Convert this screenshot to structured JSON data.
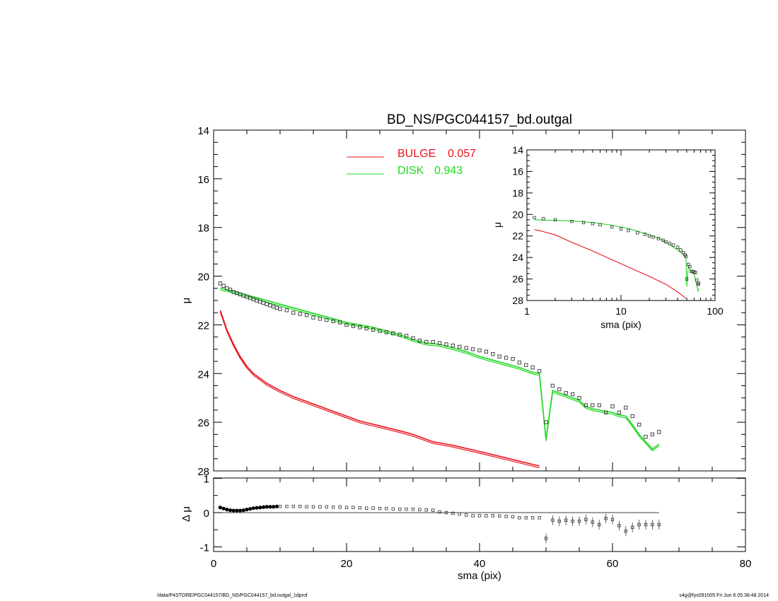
{
  "footer": {
    "left": "/data/P4STORE/PGC044157/BD_NS/PGC044157_bd.outgal_1dprof",
    "right": "s4g@fys091005  Fri Jun  6 05:38:48 2014"
  },
  "chart_data": [
    {
      "panel": "main",
      "type": "line",
      "title": "BD_NS/PGC044157_bd.outgal",
      "xlabel": "",
      "ylabel": "μ",
      "xlim": [
        0,
        80
      ],
      "ylim": [
        28,
        14
      ],
      "y_inverted": true,
      "yticks": [
        14,
        16,
        18,
        20,
        22,
        24,
        26,
        28
      ],
      "legend": [
        {
          "name": "BULGE",
          "value": "0.057",
          "color": "#e8141c"
        },
        {
          "name": "DISK",
          "value": "0.943",
          "color": "#1ed81e"
        }
      ],
      "series": [
        {
          "name": "BULGE",
          "color": "#e8141c",
          "x": [
            1,
            1.5,
            2,
            3,
            4,
            5,
            6,
            7,
            8,
            10,
            12,
            15,
            18,
            20,
            22,
            25,
            28,
            30,
            33,
            36,
            40,
            43,
            46,
            49
          ],
          "y": [
            21.4,
            21.8,
            22.2,
            22.8,
            23.3,
            23.7,
            24.0,
            24.2,
            24.4,
            24.7,
            24.95,
            25.25,
            25.55,
            25.75,
            25.95,
            26.15,
            26.35,
            26.5,
            26.8,
            26.95,
            27.2,
            27.4,
            27.6,
            27.8
          ]
        },
        {
          "name": "DISK",
          "color": "#1ed81e",
          "x": [
            1,
            2,
            4,
            6,
            8,
            10,
            12,
            14,
            16,
            18,
            20,
            22,
            24,
            26,
            28,
            30,
            32,
            34,
            36,
            38,
            40,
            42,
            44,
            46,
            48,
            49,
            50,
            51,
            52,
            53,
            54,
            55,
            56,
            57,
            58,
            59,
            60,
            61,
            62,
            63,
            64,
            65,
            66,
            67
          ],
          "y": [
            20.5,
            20.55,
            20.7,
            20.85,
            21.0,
            21.15,
            21.3,
            21.45,
            21.6,
            21.75,
            21.9,
            22.0,
            22.1,
            22.25,
            22.4,
            22.6,
            22.75,
            22.8,
            22.95,
            23.1,
            23.3,
            23.45,
            23.6,
            23.75,
            23.95,
            24.0,
            26.7,
            24.7,
            24.8,
            24.9,
            25.0,
            25.1,
            25.35,
            25.45,
            25.5,
            25.55,
            25.6,
            25.7,
            25.75,
            26.1,
            26.5,
            26.8,
            27.1,
            26.9
          ]
        }
      ],
      "observed_points": {
        "x": [
          1,
          1.5,
          2,
          2.5,
          3,
          3.5,
          4,
          4.5,
          5,
          5.5,
          6,
          6.5,
          7,
          7.5,
          8,
          8.5,
          9,
          9.5,
          10,
          11,
          12,
          13,
          14,
          15,
          16,
          17,
          18,
          19,
          20,
          21,
          22,
          23,
          24,
          25,
          26,
          27,
          28,
          29,
          30,
          31,
          32,
          33,
          34,
          35,
          36,
          37,
          38,
          39,
          40,
          41,
          42,
          43,
          44,
          45,
          46,
          47,
          48,
          49,
          50,
          51,
          52,
          53,
          54,
          55,
          56,
          57,
          58,
          59,
          60,
          61,
          62,
          63,
          64,
          65,
          66,
          67
        ],
        "y": [
          20.3,
          20.4,
          20.5,
          20.55,
          20.65,
          20.7,
          20.75,
          20.8,
          20.85,
          20.9,
          20.95,
          21.0,
          21.05,
          21.1,
          21.15,
          21.2,
          21.25,
          21.3,
          21.35,
          21.4,
          21.5,
          21.55,
          21.6,
          21.7,
          21.75,
          21.8,
          21.85,
          21.9,
          22.0,
          22.05,
          22.1,
          22.15,
          22.2,
          22.25,
          22.3,
          22.35,
          22.4,
          22.45,
          22.55,
          22.65,
          22.7,
          22.7,
          22.75,
          22.8,
          22.85,
          22.9,
          22.95,
          23.0,
          23.05,
          23.1,
          23.2,
          23.3,
          23.35,
          23.4,
          23.55,
          23.65,
          23.75,
          23.9,
          26.0,
          24.5,
          24.65,
          24.8,
          24.85,
          25.0,
          25.3,
          25.3,
          25.3,
          25.6,
          25.35,
          25.6,
          25.4,
          25.75,
          26.1,
          26.6,
          26.5,
          26.4
        ]
      }
    },
    {
      "panel": "inset",
      "type": "line",
      "xlabel": "sma (pix)",
      "ylabel": "μ",
      "xscale": "log",
      "xlim": [
        1,
        100
      ],
      "xticks": [
        1,
        10,
        100
      ],
      "ylim": [
        28,
        14
      ],
      "y_inverted": true,
      "yticks": [
        14,
        16,
        18,
        20,
        22,
        24,
        26,
        28
      ],
      "series": [
        {
          "name": "BULGE",
          "color": "#e8141c",
          "x": [
            1.2,
            1.5,
            2,
            3,
            5,
            8,
            12,
            20,
            30,
            40,
            49
          ],
          "y": [
            21.4,
            21.6,
            21.9,
            22.6,
            23.4,
            24.2,
            24.9,
            25.75,
            26.5,
            27.2,
            27.8
          ]
        },
        {
          "name": "DISK",
          "color": "#1ed81e",
          "x": [
            1.2,
            2,
            3,
            5,
            8,
            12,
            20,
            26,
            30,
            40,
            46,
            49,
            50,
            52,
            56,
            60,
            66,
            67
          ],
          "y": [
            20.5,
            20.55,
            20.6,
            20.75,
            21.0,
            21.3,
            21.9,
            22.25,
            22.6,
            23.3,
            23.75,
            24.0,
            26.7,
            24.8,
            25.35,
            25.6,
            27.1,
            26.9
          ]
        }
      ],
      "observed_points": {
        "x": [
          1.2,
          1.5,
          2,
          3,
          4,
          5,
          6,
          8,
          10,
          12,
          15,
          18,
          20,
          22,
          25,
          28,
          30,
          33,
          36,
          40,
          43,
          46,
          48,
          49,
          50,
          52,
          54,
          56,
          58,
          60,
          62,
          64,
          66,
          67
        ],
        "y": [
          20.3,
          20.4,
          20.5,
          20.65,
          20.75,
          20.85,
          20.95,
          21.15,
          21.35,
          21.5,
          21.7,
          21.85,
          22.0,
          22.1,
          22.25,
          22.4,
          22.55,
          22.7,
          22.85,
          23.05,
          23.3,
          23.55,
          23.75,
          23.9,
          26.0,
          24.65,
          24.85,
          25.3,
          25.3,
          25.35,
          25.4,
          26.1,
          26.5,
          26.4
        ]
      }
    },
    {
      "panel": "residual",
      "type": "scatter",
      "xlabel": "sma (pix)",
      "ylabel": "Δ μ",
      "xlim": [
        0,
        80
      ],
      "xticks": [
        0,
        20,
        40,
        60,
        80
      ],
      "ylim": [
        -1,
        1
      ],
      "yticks": [
        -1,
        0,
        1
      ],
      "zero_line_xmax": 67,
      "x": [
        1,
        1.5,
        2,
        2.5,
        3,
        3.5,
        4,
        4.5,
        5,
        5.5,
        6,
        6.5,
        7,
        7.5,
        8,
        8.5,
        9,
        9.5,
        10,
        11,
        12,
        13,
        14,
        15,
        16,
        17,
        18,
        19,
        20,
        21,
        22,
        23,
        24,
        25,
        26,
        27,
        28,
        29,
        30,
        31,
        32,
        33,
        34,
        35,
        36,
        37,
        38,
        39,
        40,
        41,
        42,
        43,
        44,
        45,
        46,
        47,
        48,
        49,
        50,
        51,
        52,
        53,
        54,
        55,
        56,
        57,
        58,
        59,
        60,
        61,
        62,
        63,
        64,
        65,
        66,
        67
      ],
      "y": [
        0.15,
        0.12,
        0.09,
        0.07,
        0.06,
        0.06,
        0.06,
        0.07,
        0.09,
        0.11,
        0.13,
        0.14,
        0.15,
        0.16,
        0.17,
        0.17,
        0.17,
        0.18,
        0.18,
        0.18,
        0.18,
        0.18,
        0.17,
        0.17,
        0.17,
        0.17,
        0.16,
        0.16,
        0.15,
        0.15,
        0.14,
        0.13,
        0.13,
        0.12,
        0.12,
        0.11,
        0.1,
        0.1,
        0.1,
        0.09,
        0.08,
        0.07,
        0.02,
        0.0,
        -0.02,
        -0.04,
        -0.07,
        -0.09,
        -0.09,
        -0.09,
        -0.09,
        -0.1,
        -0.11,
        -0.12,
        -0.15,
        -0.15,
        -0.15,
        -0.15,
        -0.75,
        -0.22,
        -0.25,
        -0.22,
        -0.25,
        -0.25,
        -0.2,
        -0.28,
        -0.35,
        -0.17,
        -0.2,
        -0.38,
        -0.54,
        -0.43,
        -0.35,
        -0.35,
        -0.35,
        -0.35
      ]
    }
  ]
}
